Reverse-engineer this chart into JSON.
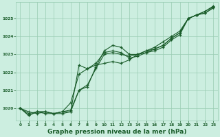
{
  "background_color": "#cceee0",
  "plot_bg_color": "#cceee0",
  "grid_color": "#99ccb3",
  "line_color": "#1a5c2a",
  "marker_color": "#1a5c2a",
  "title": "Graphe pression niveau de la mer (hPa)",
  "title_fontsize": 6.5,
  "title_color": "#1a5c2a",
  "tick_color": "#1a5c2a",
  "ylim": [
    1019.3,
    1025.9
  ],
  "xlim": [
    -0.5,
    23.5
  ],
  "yticks": [
    1020,
    1021,
    1022,
    1023,
    1024,
    1025
  ],
  "xticks": [
    0,
    1,
    2,
    3,
    4,
    5,
    6,
    7,
    8,
    9,
    10,
    11,
    12,
    13,
    14,
    15,
    16,
    17,
    18,
    19,
    20,
    21,
    22,
    23
  ],
  "series": [
    [
      1020.0,
      1019.8,
      1019.7,
      1019.8,
      1019.7,
      1019.8,
      1020.3,
      1021.9,
      1022.2,
      1022.4,
      1022.5,
      1022.6,
      1022.5,
      1022.7,
      1023.0,
      1023.2,
      1023.4,
      1023.7,
      1024.0,
      1024.3,
      1025.0,
      1025.2,
      1025.4,
      1025.7
    ],
    [
      1020.0,
      1019.7,
      1019.8,
      1019.8,
      1019.7,
      1019.8,
      1019.9,
      1021.0,
      1021.3,
      1022.2,
      1023.0,
      1023.1,
      1023.0,
      1022.9,
      1023.0,
      1023.1,
      1023.2,
      1023.4,
      1023.8,
      1024.1,
      1025.0,
      1025.2,
      1025.3,
      1025.6
    ],
    [
      1020.0,
      1019.6,
      1019.8,
      1019.8,
      1019.7,
      1019.7,
      1019.8,
      1021.0,
      1021.2,
      1022.3,
      1023.2,
      1023.5,
      1023.4,
      1023.0,
      1023.0,
      1023.2,
      1023.3,
      1023.5,
      1023.9,
      1024.2,
      1025.0,
      1025.2,
      1025.4,
      1025.65
    ],
    [
      1020.0,
      1019.6,
      1019.8,
      1019.7,
      1019.7,
      1019.8,
      1019.8,
      1022.4,
      1022.2,
      1022.5,
      1023.1,
      1023.2,
      1023.1,
      1022.8,
      1022.9,
      1023.1,
      1023.3,
      1023.5,
      1023.9,
      1024.2,
      1025.0,
      1025.2,
      1025.3,
      1025.6
    ]
  ]
}
